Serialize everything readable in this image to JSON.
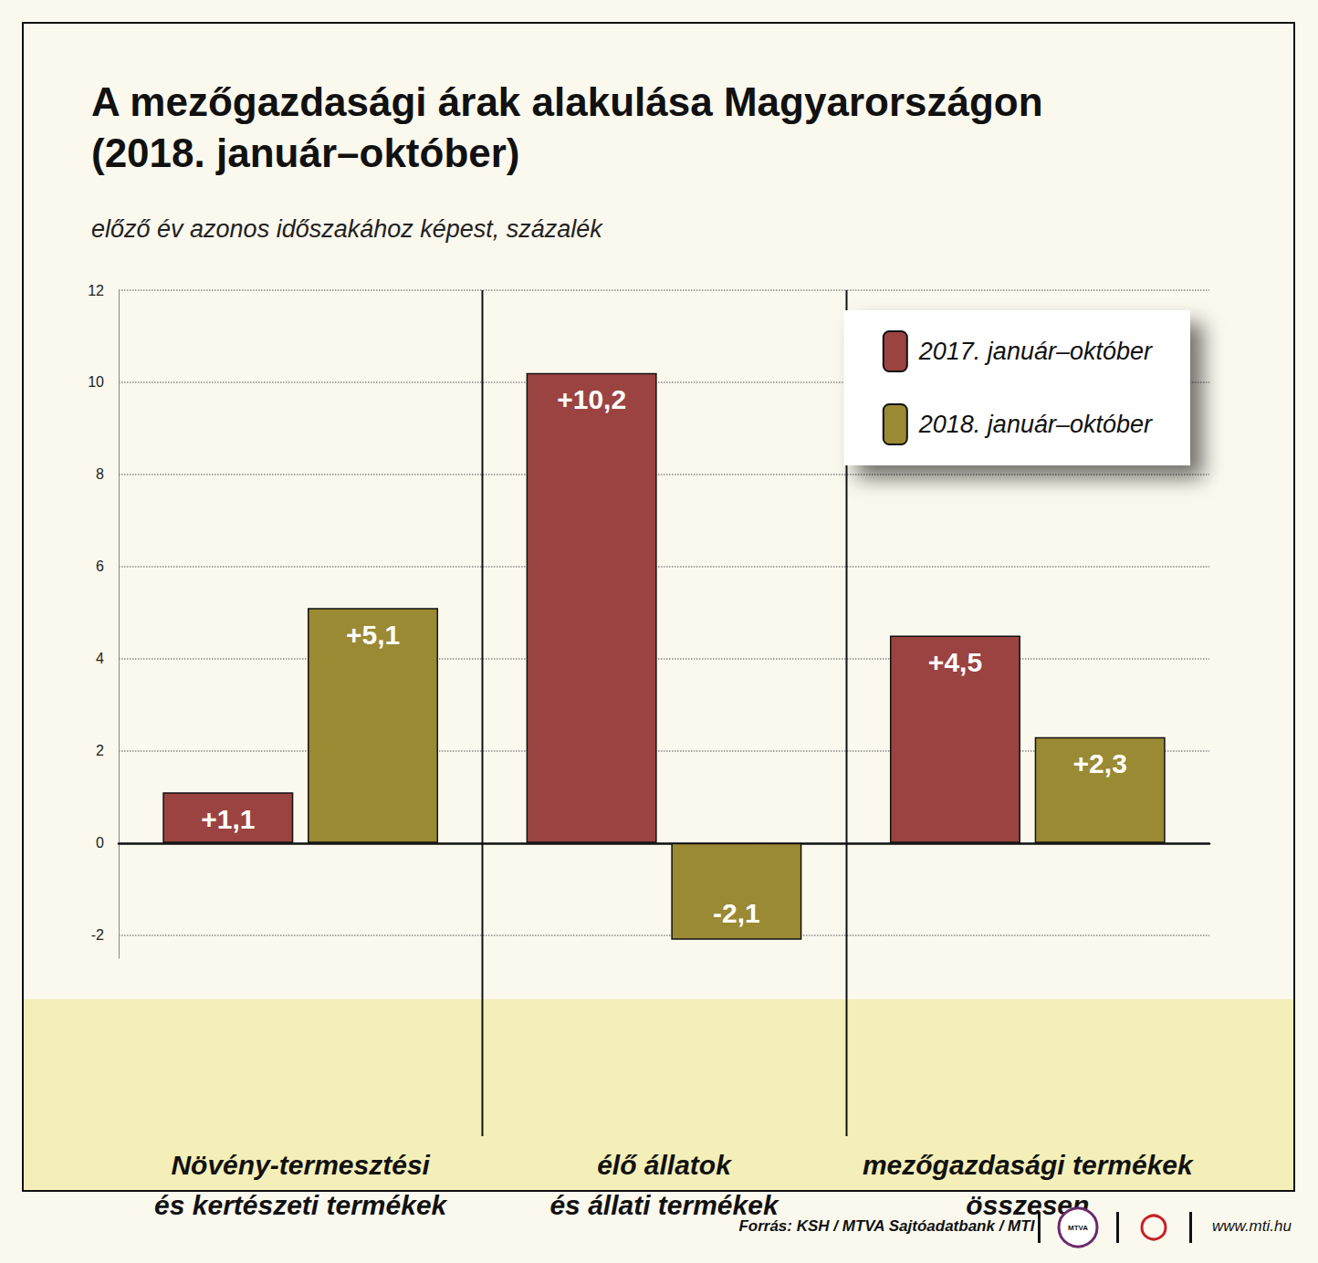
{
  "chart_data": {
    "type": "bar",
    "title": "A mezőgazdasági árak alakulása Magyarországon\n(2018. január–október)",
    "subtitle": "előző év azonos időszakához képest, százalék",
    "categories": [
      "Növény-termesztési\nés kertészeti termékek",
      "élő állatok\nés állati termékek",
      "mezőgazdasági termékek\nösszesen"
    ],
    "series": [
      {
        "name": "2017. január–október",
        "color": "#9b4340",
        "values": [
          1.1,
          10.2,
          4.5
        ],
        "value_labels": [
          "+1,1",
          "+10,2",
          "+4,5"
        ]
      },
      {
        "name": "2018. január–október",
        "color": "#9b8a34",
        "values": [
          5.1,
          -2.1,
          2.3
        ],
        "value_labels": [
          "+5,1",
          "-2,1",
          "+2,3"
        ]
      }
    ],
    "ylim": [
      -2.5,
      12
    ],
    "yticks": [
      -2,
      0,
      2,
      4,
      6,
      8,
      10,
      12
    ],
    "grid": true,
    "legend": "top-right",
    "data_labels": true,
    "source": "Forrás: KSH / MTVA Sajtóadatbank / MTI",
    "logo_text": "MTVA",
    "website": "www.mti.hu"
  }
}
